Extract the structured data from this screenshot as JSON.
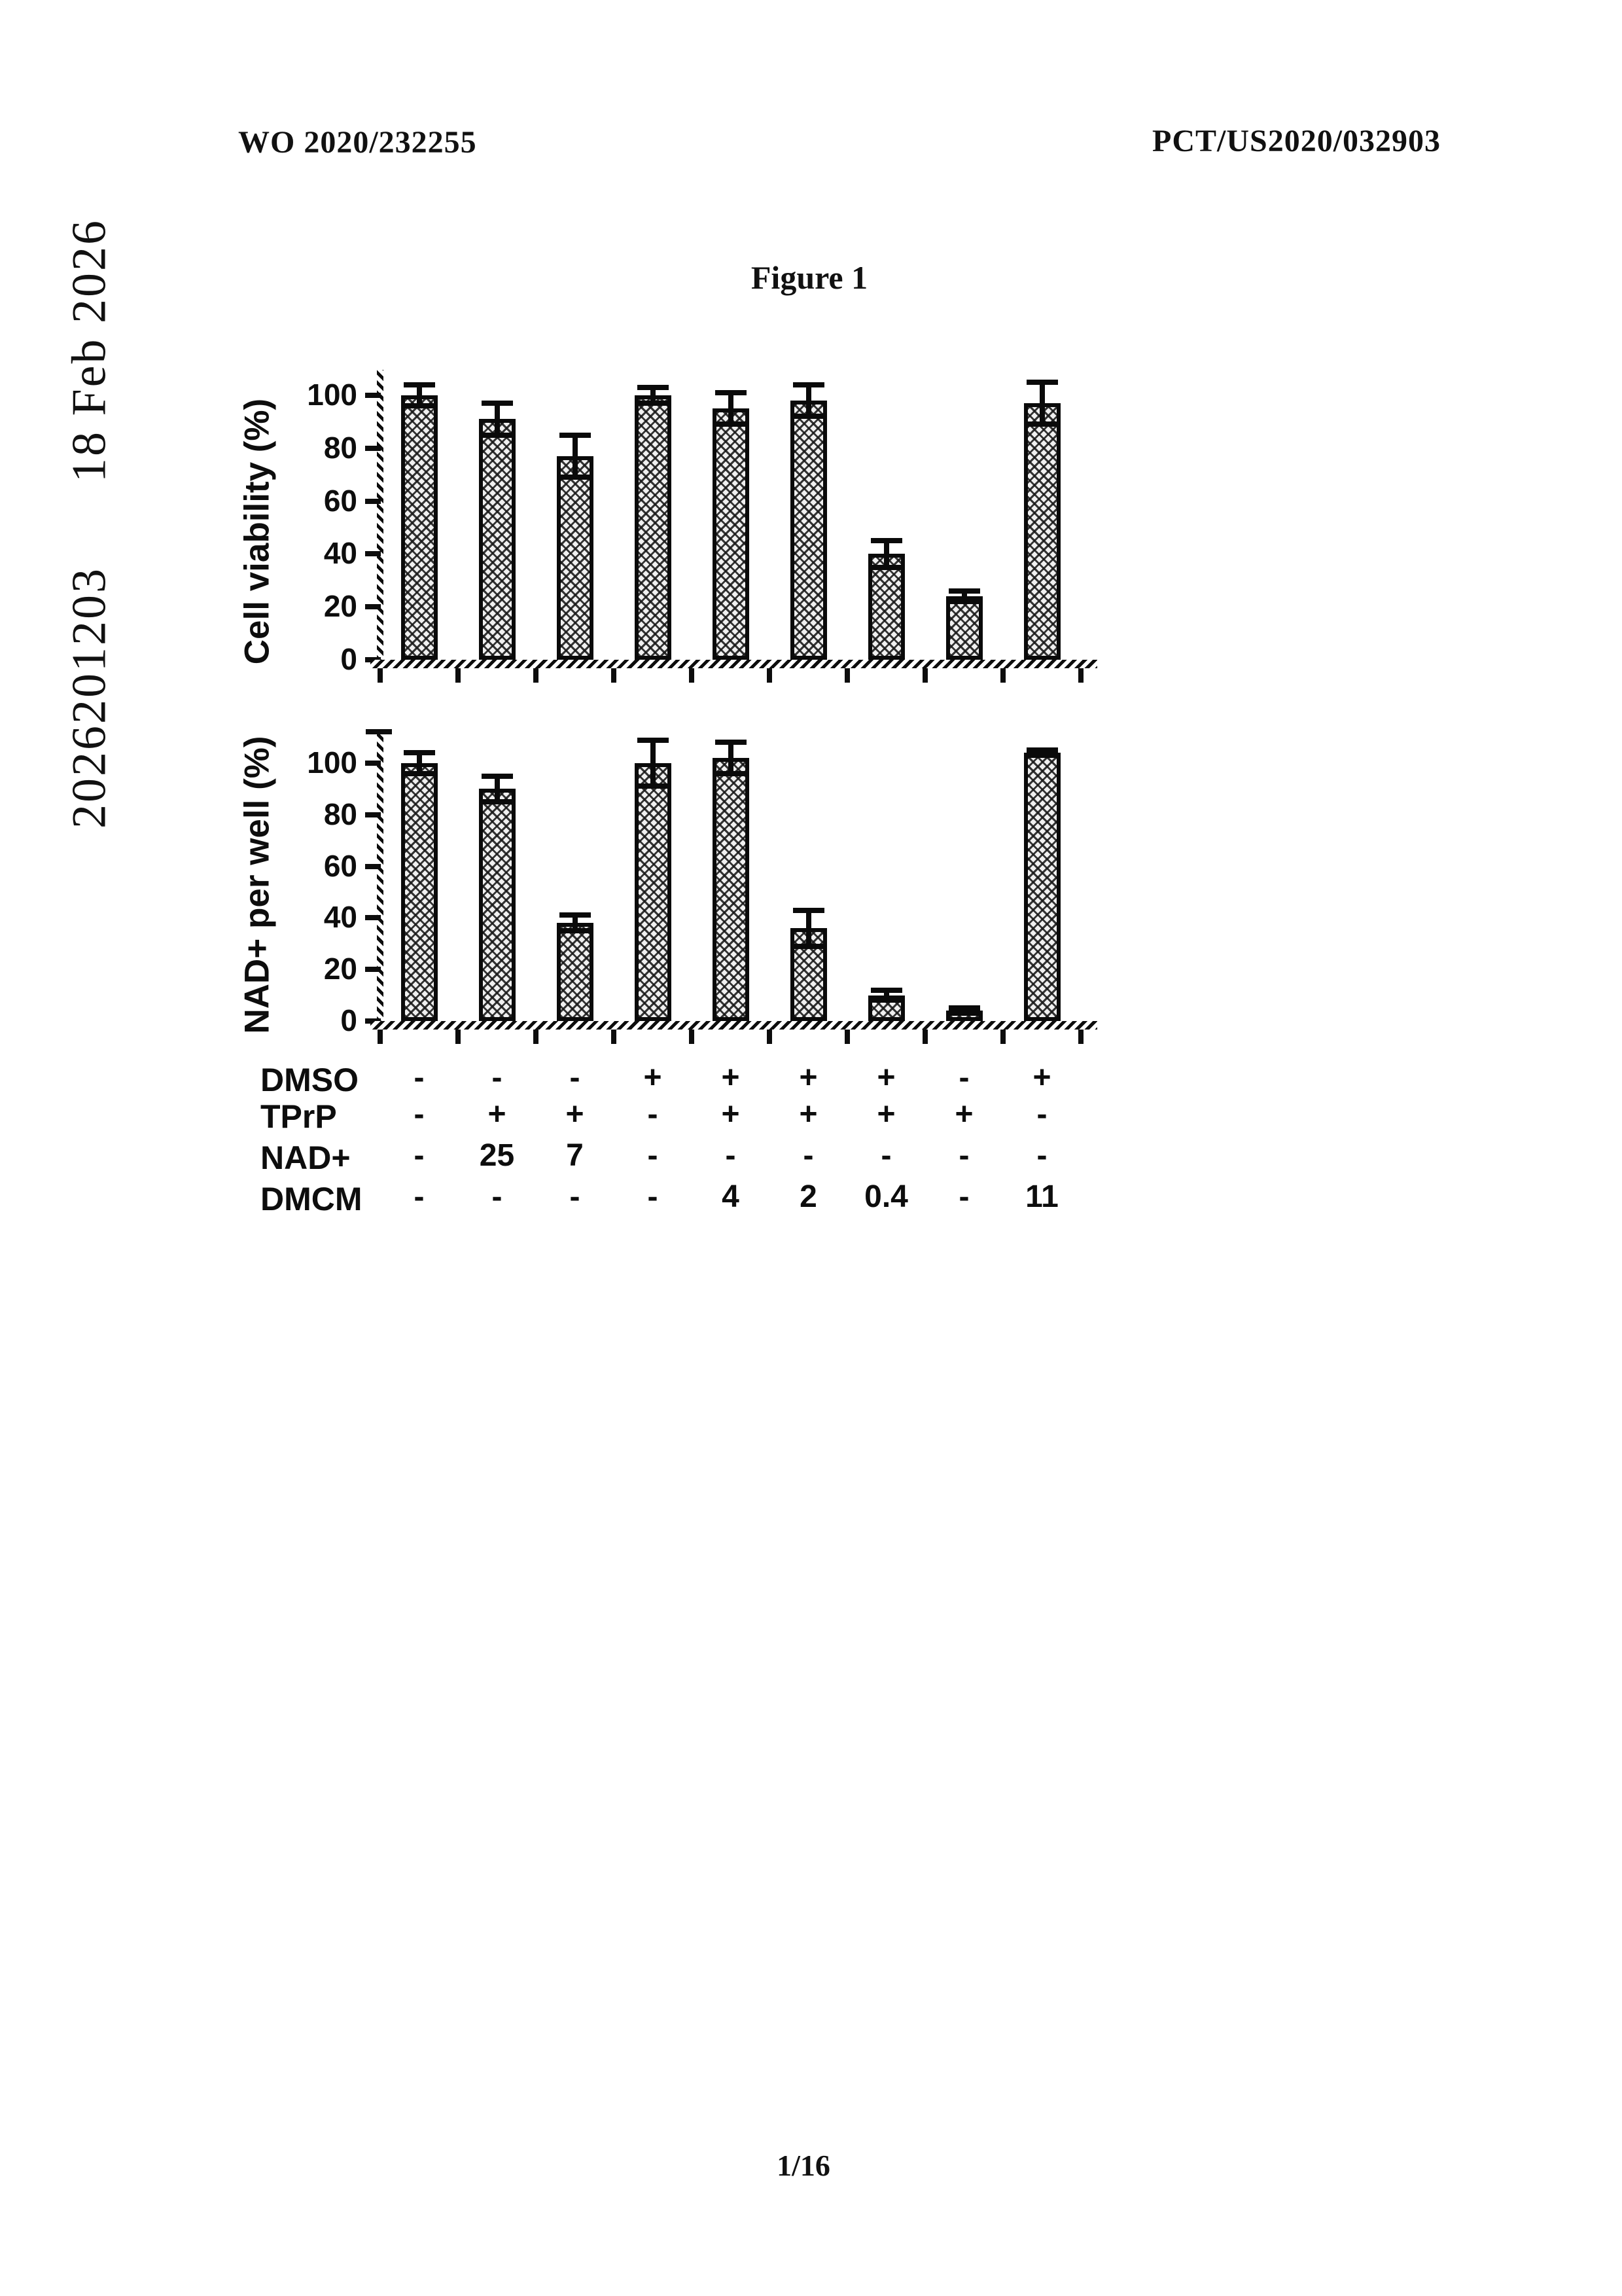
{
  "document": {
    "header_left": "WO 2020/232255",
    "header_right": "PCT/US2020/032903",
    "margin_note": "2026201203      18 Feb 2026",
    "figure_title": "Figure 1",
    "page_number": "1/16"
  },
  "chart_data": [
    {
      "type": "bar",
      "title": "",
      "xlabel": "",
      "ylabel": "Cell viability (%)",
      "yticks": [
        0,
        20,
        40,
        60,
        80,
        100
      ],
      "ylim": [
        0,
        110
      ],
      "grid": false,
      "legend": null,
      "bar_style": "black-outlined bars with diagonal cross-hatch fill, black T error bars",
      "values": [
        100,
        91,
        77,
        100,
        95,
        98,
        40,
        24,
        97
      ],
      "errors": [
        4,
        6,
        8,
        3,
        6,
        6,
        5,
        2,
        8
      ]
    },
    {
      "type": "bar",
      "title": "",
      "xlabel": "",
      "ylabel": "NAD+ per well (%)",
      "yticks": [
        0,
        20,
        40,
        60,
        80,
        100
      ],
      "ylim": [
        0,
        112
      ],
      "grid": false,
      "legend": null,
      "bar_style": "black-outlined bars with diagonal cross-hatch fill, black T error bars",
      "values": [
        100,
        90,
        38,
        100,
        102,
        36,
        10,
        4,
        104
      ],
      "errors": [
        4,
        5,
        3,
        9,
        6,
        7,
        2,
        1,
        1
      ]
    }
  ],
  "treatment_table": {
    "rows": [
      {
        "label": "DMSO",
        "values": [
          "-",
          "-",
          "-",
          "+",
          "+",
          "+",
          "+",
          "-",
          "+"
        ]
      },
      {
        "label": "TPrP",
        "values": [
          "-",
          "+",
          "+",
          "-",
          "+",
          "+",
          "+",
          "+",
          "-"
        ]
      },
      {
        "label": "NAD+",
        "values": [
          "-",
          "25",
          "7",
          "-",
          "-",
          "-",
          "-",
          "-",
          "-"
        ]
      },
      {
        "label": "DMCM",
        "values": [
          "-",
          "-",
          "-",
          "-",
          "4",
          "2",
          "0.4",
          "-",
          "11"
        ]
      }
    ]
  },
  "style": {
    "ink_color": "#0d0d0d",
    "paper_color": "#ffffff"
  }
}
